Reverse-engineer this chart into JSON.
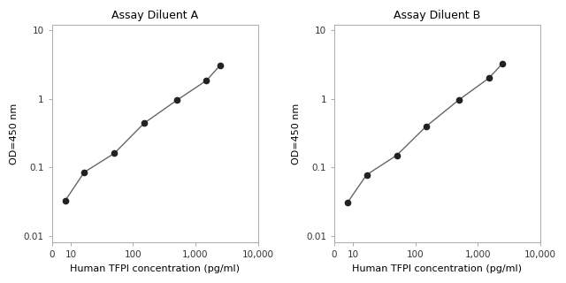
{
  "panel_A": {
    "title": "Assay Diluent A",
    "x": [
      8.2,
      16.5,
      50,
      150,
      500,
      1500,
      2500
    ],
    "y": [
      0.033,
      0.085,
      0.16,
      0.44,
      0.95,
      1.85,
      3.1
    ]
  },
  "panel_B": {
    "title": "Assay Diluent B",
    "x": [
      8.2,
      16.5,
      50,
      150,
      500,
      1500,
      2500
    ],
    "y": [
      0.031,
      0.078,
      0.15,
      0.4,
      0.97,
      2.0,
      3.3
    ]
  },
  "xlabel": "Human TFPI concentration (pg/ml)",
  "ylabel": "OD=450 nm",
  "xlim_A": [
    5,
    9000
  ],
  "xlim_B": [
    5,
    9000
  ],
  "ylim": [
    0.008,
    12
  ],
  "yticks": [
    0.01,
    0.1,
    1,
    10
  ],
  "xticks": [
    5,
    10,
    100,
    1000,
    10000
  ],
  "xticklabels": [
    "0",
    "10",
    "100",
    "1,000",
    "10,000"
  ],
  "yticklabels": [
    "0.01",
    "0.1",
    "1",
    "10"
  ],
  "line_color": "#666666",
  "marker_color": "#222222",
  "background_color": "#ffffff",
  "fig_background": "#ffffff",
  "title_fontsize": 9,
  "label_fontsize": 8,
  "tick_fontsize": 7.5
}
